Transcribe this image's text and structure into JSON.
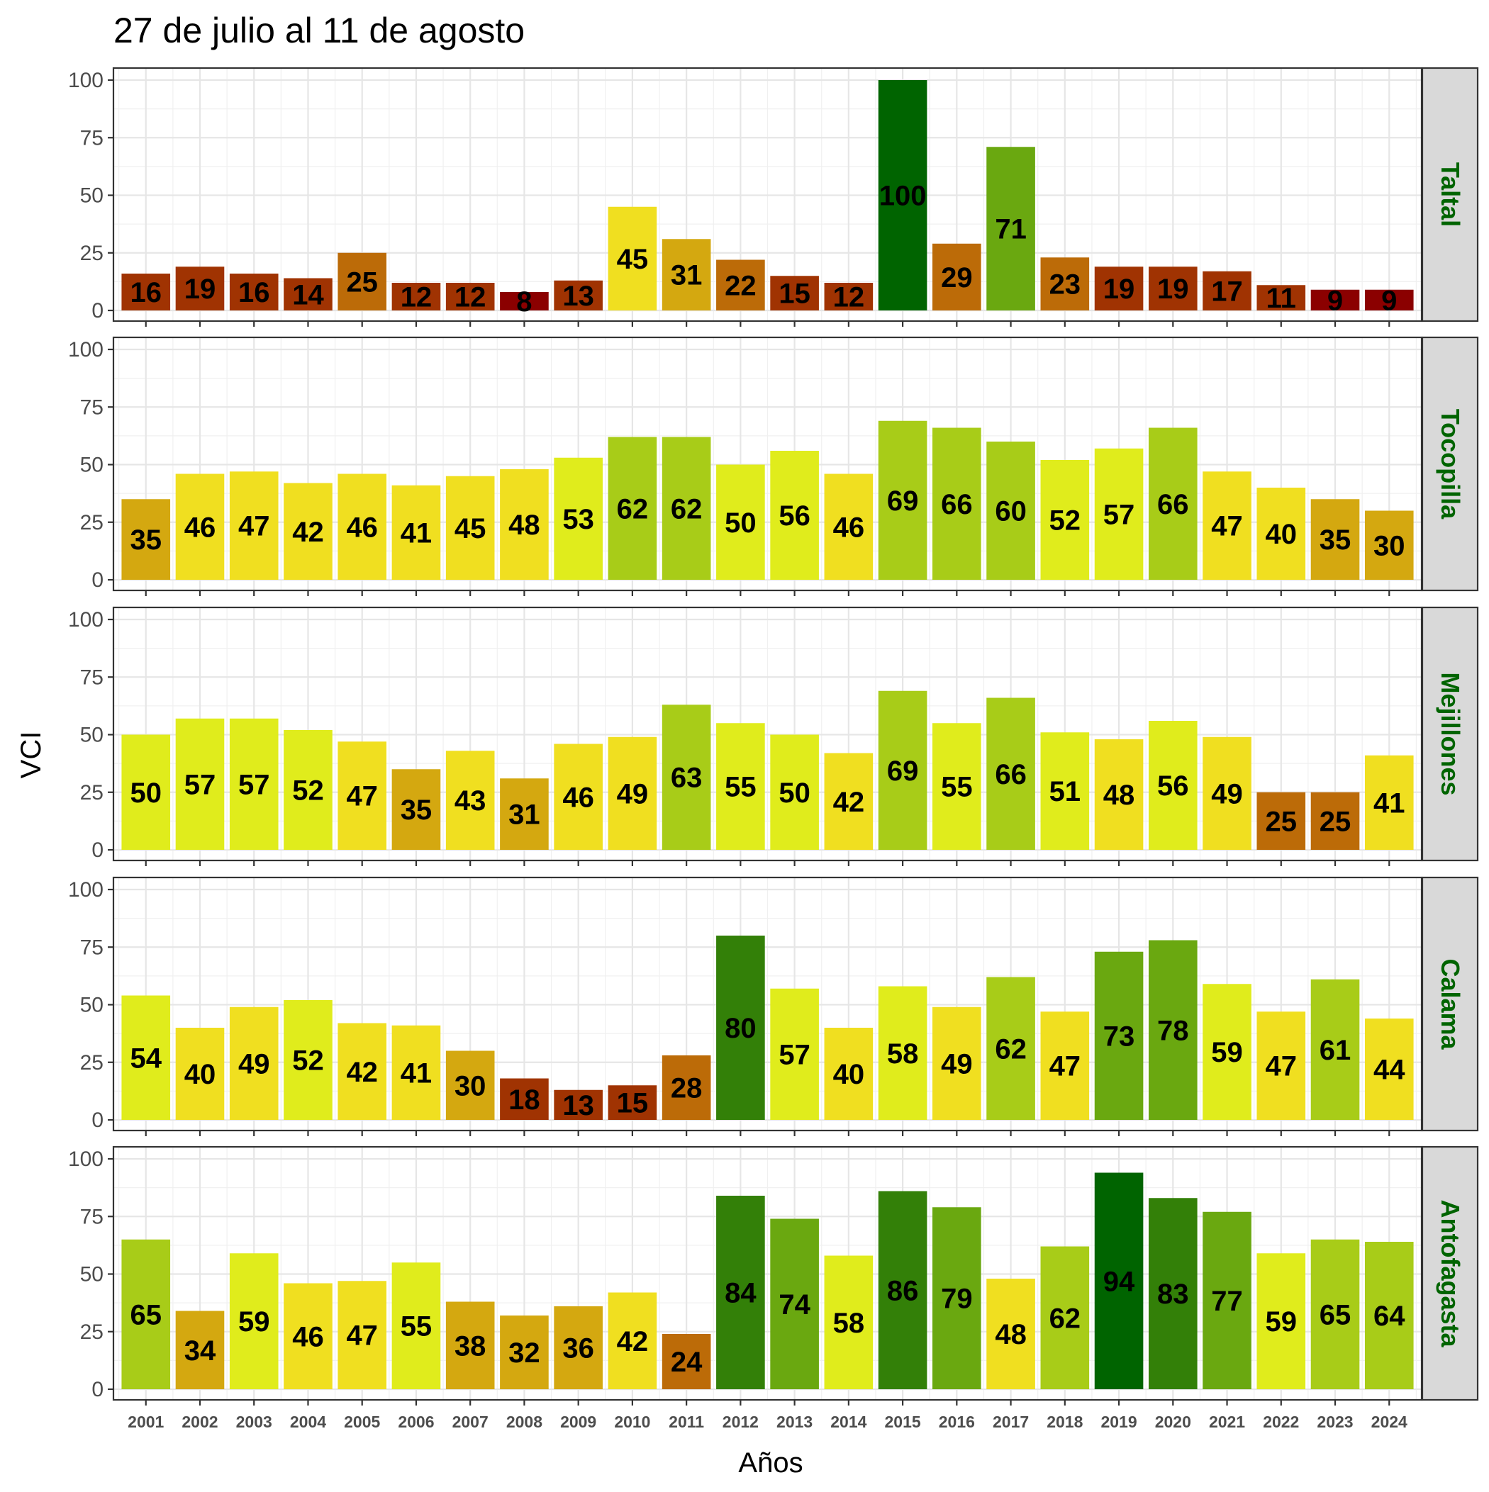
{
  "chart_data": {
    "type": "bar",
    "title": "27 de julio al 11 de agosto",
    "xlabel": "Años",
    "ylabel": "VCI",
    "ylim": [
      0,
      100
    ],
    "yticks": [
      0,
      25,
      50,
      75,
      100
    ],
    "grid": true,
    "categories": [
      "2001",
      "2002",
      "2003",
      "2004",
      "2005",
      "2006",
      "2007",
      "2008",
      "2009",
      "2010",
      "2011",
      "2012",
      "2013",
      "2014",
      "2015",
      "2016",
      "2017",
      "2018",
      "2019",
      "2020",
      "2021",
      "2022",
      "2023",
      "2024"
    ],
    "palette": {
      "0-10": "#8b0000",
      "10-20": "#a03302",
      "20-30": "#bc6b08",
      "30-40": "#d4a810",
      "40-50": "#f0df20",
      "50-60": "#e0ec1c",
      "60-70": "#a8cc18",
      "70-80": "#6aa810",
      "80-90": "#338008",
      "90-100": "#006400"
    },
    "panels": [
      {
        "name": "Taltal",
        "values": [
          16,
          19,
          16,
          14,
          25,
          12,
          12,
          8,
          13,
          45,
          31,
          22,
          15,
          12,
          100,
          29,
          71,
          23,
          19,
          19,
          17,
          11,
          9,
          9
        ]
      },
      {
        "name": "Tocopilla",
        "values": [
          35,
          46,
          47,
          42,
          46,
          41,
          45,
          48,
          53,
          62,
          62,
          50,
          56,
          46,
          69,
          66,
          60,
          52,
          57,
          66,
          47,
          40,
          35,
          30
        ]
      },
      {
        "name": "Mejillones",
        "values": [
          50,
          57,
          57,
          52,
          47,
          35,
          43,
          31,
          46,
          49,
          63,
          55,
          50,
          42,
          69,
          55,
          66,
          51,
          48,
          56,
          49,
          25,
          25,
          41
        ]
      },
      {
        "name": "Calama",
        "values": [
          54,
          40,
          49,
          52,
          42,
          41,
          30,
          18,
          13,
          15,
          28,
          80,
          57,
          40,
          58,
          49,
          62,
          47,
          73,
          78,
          59,
          47,
          61,
          44
        ]
      },
      {
        "name": "Antofagasta",
        "values": [
          65,
          34,
          59,
          46,
          47,
          55,
          38,
          32,
          36,
          42,
          24,
          84,
          74,
          58,
          86,
          79,
          48,
          62,
          94,
          83,
          77,
          59,
          65,
          64
        ]
      }
    ]
  }
}
